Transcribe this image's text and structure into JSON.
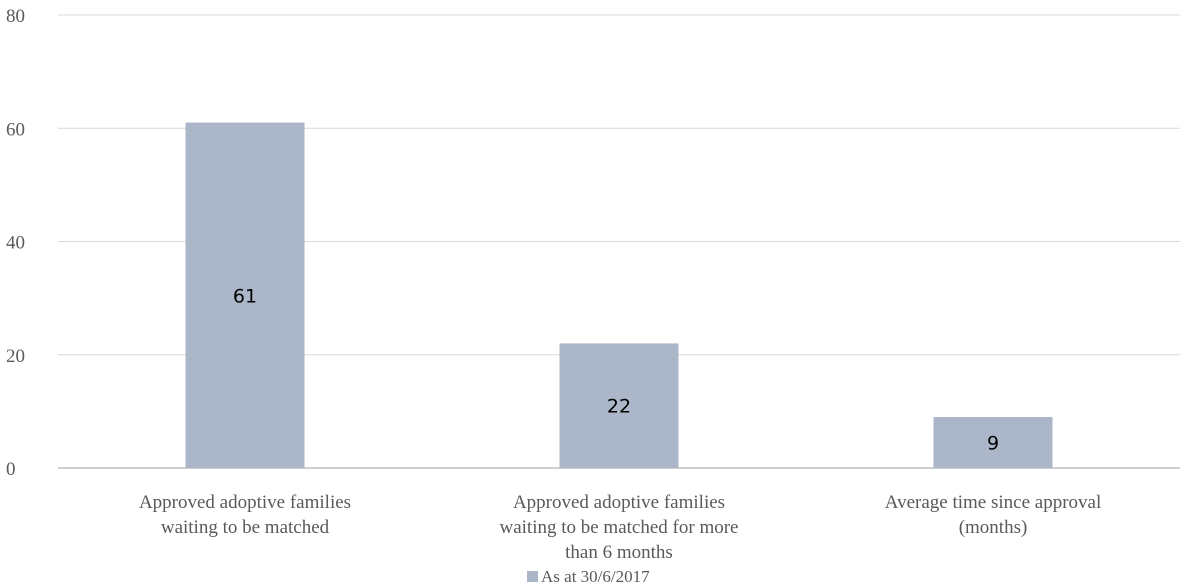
{
  "colors": {
    "bar": "#abb6c8",
    "grid": "#d9d9d9",
    "axis": "#bfbfbf"
  },
  "chart_data": {
    "type": "bar",
    "categories": [
      [
        "Approved adoptive families",
        "waiting to be matched"
      ],
      [
        "Approved adoptive families",
        "waiting to be matched for more",
        "than 6 months"
      ],
      [
        "Average time since approval",
        "(months)"
      ]
    ],
    "series": [
      {
        "name": "As at 30/6/2017",
        "values": [
          61,
          22,
          9
        ]
      }
    ],
    "data_labels": [
      "61",
      "22",
      "9"
    ],
    "yticks": [
      "0",
      "20",
      "40",
      "60",
      "80"
    ],
    "ylim": [
      0,
      80
    ],
    "grid": true,
    "legend": "bottom"
  }
}
